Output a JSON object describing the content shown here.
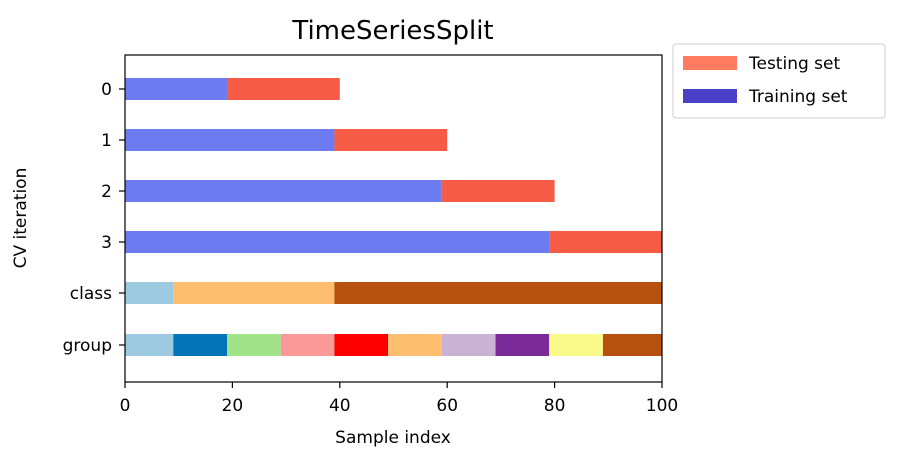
{
  "chart_data": {
    "type": "bar",
    "orientation": "horizontal-segmented",
    "title": "TimeSeriesSplit",
    "xlabel": "Sample index",
    "ylabel": "CV iteration",
    "xlim": [
      0,
      100
    ],
    "xticks": [
      0,
      20,
      40,
      60,
      80,
      100
    ],
    "grid": false,
    "legend": {
      "placement": "outside-top-right",
      "entries": [
        {
          "label": "Testing set",
          "color": "#fd7b5f"
        },
        {
          "label": "Training set",
          "color": "#4a40c8"
        }
      ]
    },
    "rows": [
      {
        "label": "0",
        "segments": [
          {
            "start": 0,
            "end": 19,
            "set": "Training set",
            "color": "#6c7bef"
          },
          {
            "start": 19,
            "end": 40,
            "set": "Testing set",
            "color": "#f55b45"
          }
        ]
      },
      {
        "label": "1",
        "segments": [
          {
            "start": 0,
            "end": 39,
            "set": "Training set",
            "color": "#6c7bef"
          },
          {
            "start": 39,
            "end": 60,
            "set": "Testing set",
            "color": "#f55b45"
          }
        ]
      },
      {
        "label": "2",
        "segments": [
          {
            "start": 0,
            "end": 59,
            "set": "Training set",
            "color": "#6c7bef"
          },
          {
            "start": 59,
            "end": 80,
            "set": "Testing set",
            "color": "#f55b45"
          }
        ]
      },
      {
        "label": "3",
        "segments": [
          {
            "start": 0,
            "end": 79,
            "set": "Training set",
            "color": "#6c7bef"
          },
          {
            "start": 79,
            "end": 100,
            "set": "Testing set",
            "color": "#f55b45"
          }
        ]
      },
      {
        "label": "class",
        "segments": [
          {
            "start": 0,
            "end": 9,
            "color": "#9ecae1"
          },
          {
            "start": 9,
            "end": 39,
            "color": "#fdbf6f"
          },
          {
            "start": 39,
            "end": 100,
            "color": "#b7500f"
          }
        ]
      },
      {
        "label": "group",
        "segments": [
          {
            "start": 0,
            "end": 9,
            "color": "#9ecae1"
          },
          {
            "start": 9,
            "end": 19,
            "color": "#0474b8"
          },
          {
            "start": 19,
            "end": 29,
            "color": "#a0e388"
          },
          {
            "start": 29,
            "end": 39,
            "color": "#fb9a99"
          },
          {
            "start": 39,
            "end": 49,
            "color": "#ff0000"
          },
          {
            "start": 49,
            "end": 59,
            "color": "#fdbf6f"
          },
          {
            "start": 59,
            "end": 69,
            "color": "#cab2d6"
          },
          {
            "start": 69,
            "end": 79,
            "color": "#7b2a9a"
          },
          {
            "start": 79,
            "end": 89,
            "color": "#f9f98a"
          },
          {
            "start": 89,
            "end": 100,
            "color": "#b7500f"
          }
        ]
      }
    ]
  }
}
